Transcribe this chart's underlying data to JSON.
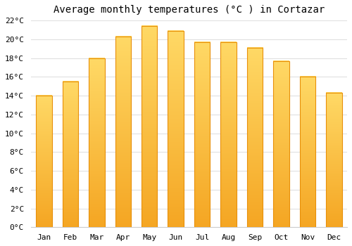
{
  "title": "Average monthly temperatures (°C ) in Cortazar",
  "months": [
    "Jan",
    "Feb",
    "Mar",
    "Apr",
    "May",
    "Jun",
    "Jul",
    "Aug",
    "Sep",
    "Oct",
    "Nov",
    "Dec"
  ],
  "values": [
    14.0,
    15.5,
    18.0,
    20.3,
    21.4,
    20.9,
    19.7,
    19.7,
    19.1,
    17.7,
    16.0,
    14.3
  ],
  "bar_color_bottom": "#F5A623",
  "bar_color_top": "#FFD966",
  "bar_edge_color": "#E8900A",
  "background_color": "#FFFFFF",
  "grid_color": "#E0E0E0",
  "ylim": [
    0,
    22
  ],
  "ytick_step": 2,
  "title_fontsize": 10,
  "tick_fontsize": 8,
  "font_family": "monospace",
  "bar_width": 0.6
}
